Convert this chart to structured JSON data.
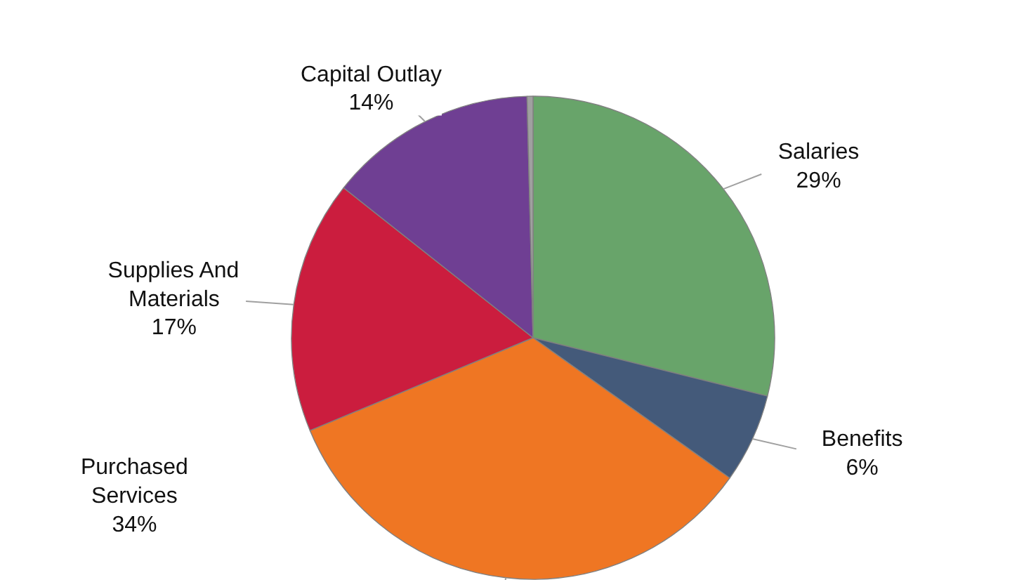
{
  "chart_data": {
    "type": "pie",
    "categories": [
      "Salaries",
      "Benefits",
      "Purchased Services",
      "Supplies And Materials",
      "Capital Outlay",
      null
    ],
    "values": [
      29,
      6,
      34,
      17,
      14,
      0.4
    ],
    "value_labels": [
      "29%",
      "6%",
      "34%",
      "17%",
      "14%",
      null
    ],
    "colors": [
      "#68a46a",
      "#445a7a",
      "#ef7623",
      "#cb1d3e",
      "#6f3f93",
      "#a0a0a0"
    ]
  }
}
